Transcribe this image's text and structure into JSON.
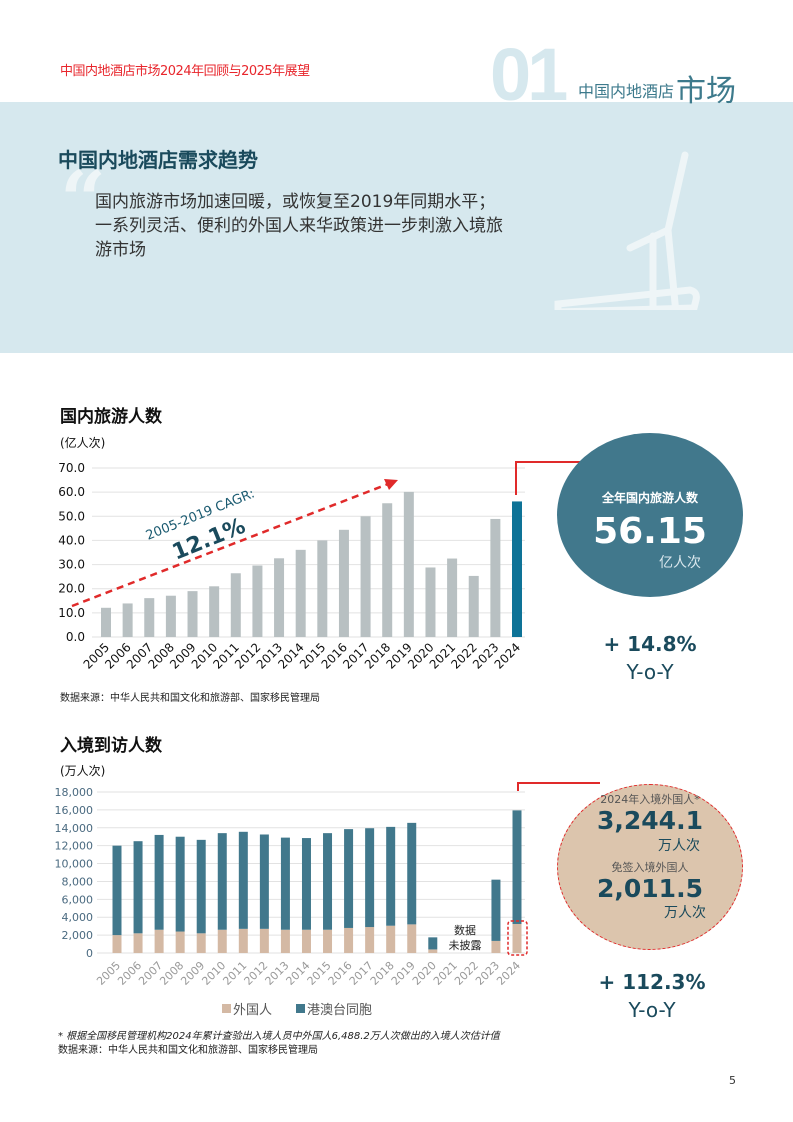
{
  "header": {
    "report_title": "中国内地酒店市场2024年回顾与2025年展望",
    "section_number": "01",
    "section_label_small": "中国内地酒店",
    "section_label_big": "市场"
  },
  "banner": {
    "title": "中国内地酒店需求趋势",
    "quote_mark": "“",
    "quote": "国内旅游市场加速回暖，或恢复至2019年同期水平；一系列灵活、便利的外国人来华政策进一步刺激入境旅游市场",
    "icon": "treadmill-icon"
  },
  "domestic": {
    "title": "国内旅游人数",
    "unit": "(亿人次)",
    "source": "数据来源：中华人民共和国文化和旅游部、国家移民管理局",
    "highlight": {
      "label": "全年国内旅游人数",
      "value": "56.15",
      "unit": "亿人次",
      "change": "+ 14.8%",
      "change_label": "Y-o-Y"
    }
  },
  "inbound": {
    "title": "入境到访人数",
    "unit": "(万人次)",
    "note": "* 根据全国移民管理机构2024年累计查验出入境人员中外国人6,488.2万人次做出的入境人次估计值",
    "source": "数据来源：中华人民共和国文化和旅游部、国家移民管理局",
    "highlight": {
      "label1": "2024年入境外国人*",
      "value1": "3,244.1",
      "unit1": "万人次",
      "label2": "免签入境外国人",
      "value2": "2,011.5",
      "unit2": "万人次",
      "change": "+ 112.3%",
      "change_label": "Y-o-Y"
    }
  },
  "page_number": "5",
  "chart_data": [
    {
      "type": "bar",
      "title": "国内旅游人数",
      "ylabel": "(亿人次)",
      "ylim": [
        0,
        70
      ],
      "yticks": [
        "0.0",
        "10.0",
        "20.0",
        "30.0",
        "40.0",
        "50.0",
        "60.0",
        "70.0"
      ],
      "grid": true,
      "categories": [
        "2005",
        "2006",
        "2007",
        "2008",
        "2009",
        "2010",
        "2011",
        "2012",
        "2013",
        "2014",
        "2015",
        "2016",
        "2017",
        "2018",
        "2019",
        "2020",
        "2021",
        "2022",
        "2023",
        "2024"
      ],
      "values": [
        12.1,
        13.9,
        16.1,
        17.1,
        19.0,
        21.0,
        26.4,
        29.6,
        32.6,
        36.1,
        40.0,
        44.4,
        50.0,
        55.4,
        60.1,
        28.8,
        32.5,
        25.3,
        48.9,
        56.15
      ],
      "colors": {
        "default": "#b8c0c2",
        "highlight": "#0e7397"
      },
      "annotation": {
        "label": "2005-2019 CAGR:",
        "value": "12.1%",
        "color": "#e02a2a"
      }
    },
    {
      "type": "bar",
      "stacked": true,
      "title": "入境到访人数",
      "ylabel": "(万人次)",
      "ylim": [
        0,
        18000
      ],
      "yticks": [
        "0",
        "2,000",
        "4,000",
        "6,000",
        "8,000",
        "10,000",
        "12,000",
        "14,000",
        "16,000",
        "18,000"
      ],
      "grid": true,
      "legend": "bottom",
      "categories": [
        "2005",
        "2006",
        "2007",
        "2008",
        "2009",
        "2010",
        "2011",
        "2012",
        "2013",
        "2014",
        "2015",
        "2016",
        "2017",
        "2018",
        "2019",
        "2020",
        "2021",
        "2022",
        "2023",
        "2024"
      ],
      "series": [
        {
          "name": "外国人",
          "color": "#d4b9a4",
          "values": [
            2000,
            2200,
            2600,
            2400,
            2200,
            2600,
            2700,
            2700,
            2600,
            2600,
            2600,
            2800,
            2900,
            3050,
            3200,
            400,
            null,
            null,
            1350,
            3244.1
          ]
        },
        {
          "name": "港澳台同胞",
          "color": "#41788c",
          "values": [
            10000,
            10300,
            10600,
            10600,
            10450,
            10800,
            10850,
            10550,
            10300,
            10250,
            10800,
            11050,
            11050,
            11050,
            11350,
            1350,
            null,
            null,
            6850,
            12700
          ]
        }
      ],
      "annotation": {
        "text1": "数据",
        "text2": "未披露"
      }
    }
  ]
}
